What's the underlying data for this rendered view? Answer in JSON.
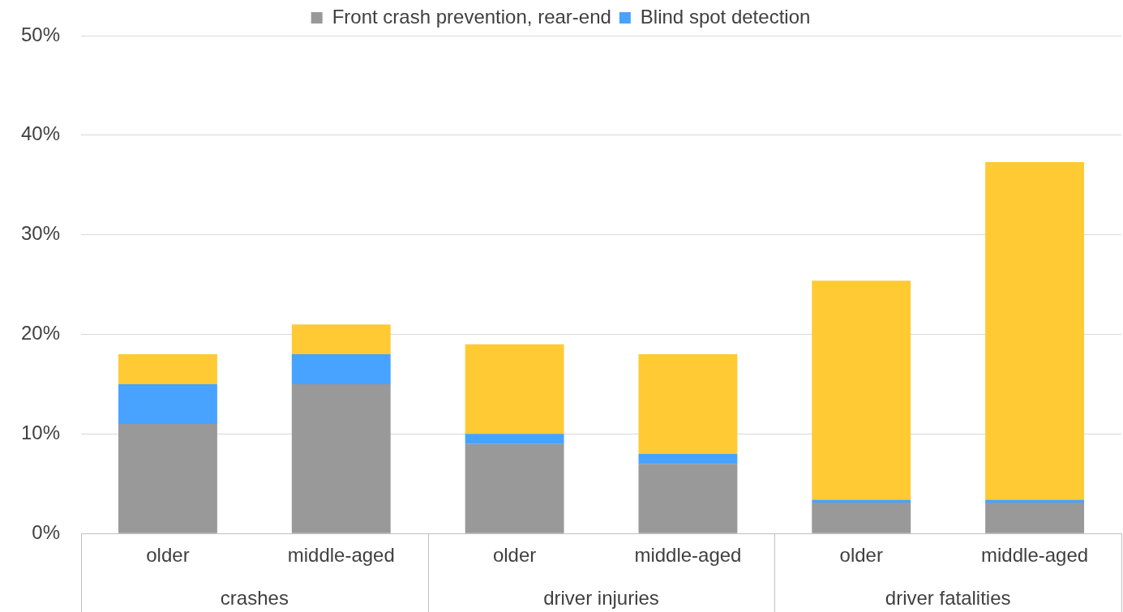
{
  "chart_data": {
    "type": "bar",
    "stacked": true,
    "categories": [
      "older",
      "middle-aged",
      "older",
      "middle-aged",
      "older",
      "middle-aged"
    ],
    "series": [
      {
        "name": "Front crash prevention, rear-end",
        "color": "#999999",
        "values": [
          11,
          15,
          9,
          7,
          3.1,
          3.1
        ]
      },
      {
        "name": "Blind spot detection",
        "color": "#47a3ff",
        "values": [
          4,
          3,
          1,
          1,
          0.3,
          0.3
        ]
      },
      {
        "color": "#ffca33",
        "values": [
          3,
          3,
          9,
          10,
          22,
          33.9
        ]
      }
    ],
    "ylim": [
      0,
      50
    ],
    "yticks": [
      {
        "value": 0,
        "label": "0%"
      },
      {
        "value": 10,
        "label": "10%"
      },
      {
        "value": 20,
        "label": "20%"
      },
      {
        "value": 30,
        "label": "30%"
      },
      {
        "value": 40,
        "label": "40%"
      },
      {
        "value": 50,
        "label": "50%"
      }
    ],
    "grid": "y",
    "legend": "top",
    "annotations": [
      "crashes",
      "driver injuries",
      "driver fatalities"
    ]
  }
}
